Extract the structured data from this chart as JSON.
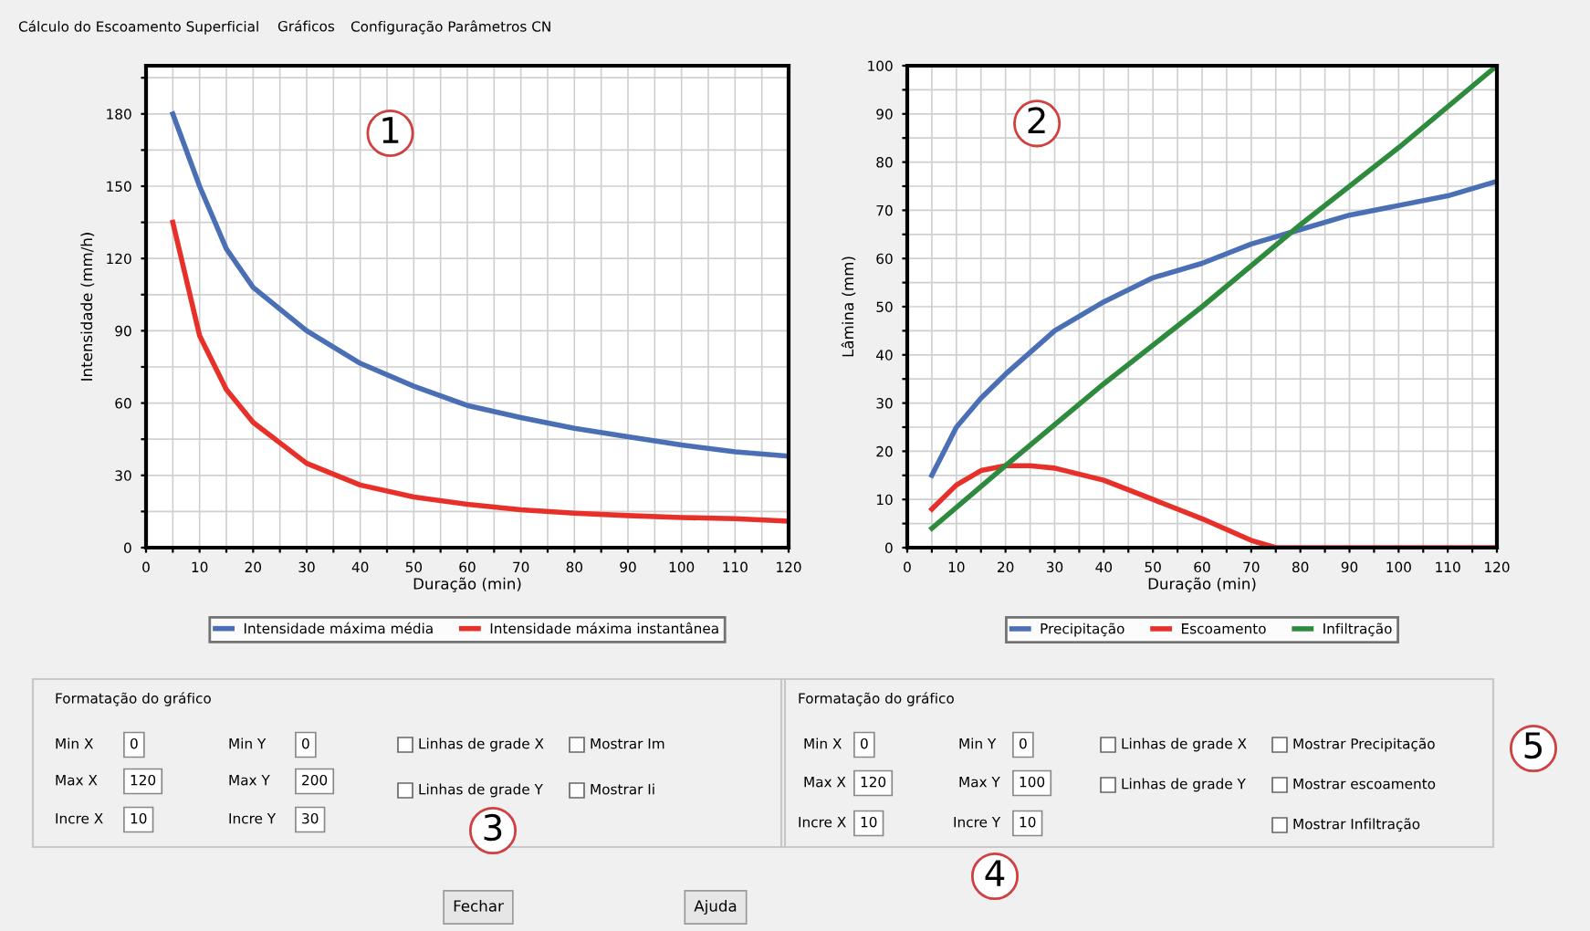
{
  "chart_data": [
    {
      "type": "line",
      "ylabel": "Intensidade (mm/h)",
      "xlabel": "Duração (min)",
      "xlim": [
        0,
        120
      ],
      "ylim": [
        0,
        200
      ],
      "xticks": [
        0,
        {
          "value": 5,
          "label": null
        },
        10,
        {
          "value": 15,
          "label": null
        },
        20,
        {
          "value": 25,
          "label": null
        },
        30,
        {
          "value": 35,
          "label": null
        },
        40,
        {
          "value": 45,
          "label": null
        },
        50,
        {
          "value": 55,
          "label": null
        },
        60,
        {
          "value": 65,
          "label": null
        },
        70,
        {
          "value": 75,
          "label": null
        },
        80,
        {
          "value": 85,
          "label": null
        },
        90,
        {
          "value": 95,
          "label": null
        },
        100,
        {
          "value": 105,
          "label": null
        },
        110,
        {
          "value": 115,
          "label": null
        },
        120
      ],
      "yticks": [
        0,
        {
          "value": 15,
          "label": null
        },
        30,
        {
          "value": 45,
          "label": null
        },
        60,
        {
          "value": 75,
          "label": null
        },
        90,
        {
          "value": 105,
          "label": null
        },
        120,
        {
          "value": 135,
          "label": null
        },
        150,
        {
          "value": 165,
          "label": null
        },
        180,
        {
          "value": 195,
          "label": null
        }
      ],
      "grid": true,
      "legend": "bottom",
      "marker": "none",
      "line_style": "solid",
      "annotations": [
        "1"
      ],
      "series": [
        {
          "name": "Intensidade máxima média",
          "color": "#4a6fb5",
          "x": [
            5,
            10,
            15,
            20,
            30,
            40,
            50,
            60,
            70,
            80,
            90,
            100,
            110,
            120
          ],
          "values": [
            180,
            150,
            124,
            108,
            90,
            76.5,
            67,
            59,
            54,
            49.5,
            46,
            42.6,
            39.8,
            38
          ]
        },
        {
          "name": "Intensidade máxima instantânea",
          "color": "#e8302a",
          "x": [
            5,
            10,
            15,
            20,
            30,
            40,
            50,
            60,
            70,
            80,
            90,
            100,
            110,
            120
          ],
          "values": [
            135,
            88,
            65.6,
            52,
            35,
            26,
            21,
            18,
            15.7,
            14.3,
            13.3,
            12.5,
            12,
            11
          ]
        }
      ]
    },
    {
      "type": "line",
      "ylabel": "Lâmina (mm)",
      "xlabel": "Duração (min)",
      "xlim": [
        0,
        120
      ],
      "ylim": [
        0,
        100
      ],
      "xticks": [
        0,
        {
          "value": 5,
          "label": null
        },
        10,
        {
          "value": 15,
          "label": null
        },
        20,
        {
          "value": 25,
          "label": null
        },
        30,
        {
          "value": 35,
          "label": null
        },
        40,
        {
          "value": 45,
          "label": null
        },
        50,
        {
          "value": 55,
          "label": null
        },
        60,
        {
          "value": 65,
          "label": null
        },
        70,
        {
          "value": 75,
          "label": null
        },
        80,
        {
          "value": 85,
          "label": null
        },
        90,
        {
          "value": 95,
          "label": null
        },
        100,
        {
          "value": 105,
          "label": null
        },
        110,
        {
          "value": 115,
          "label": null
        },
        120
      ],
      "yticks": [
        0,
        {
          "value": 5,
          "label": null
        },
        10,
        {
          "value": 15,
          "label": null
        },
        20,
        {
          "value": 25,
          "label": null
        },
        30,
        {
          "value": 35,
          "label": null
        },
        40,
        {
          "value": 45,
          "label": null
        },
        50,
        {
          "value": 55,
          "label": null
        },
        60,
        {
          "value": 65,
          "label": null
        },
        70,
        {
          "value": 75,
          "label": null
        },
        80,
        {
          "value": 85,
          "label": null
        },
        90,
        {
          "value": 95,
          "label": null
        },
        100
      ],
      "grid": true,
      "legend": "bottom",
      "marker": "none",
      "line_style": "solid",
      "annotations": [
        "2"
      ],
      "series": [
        {
          "name": "Precipitação",
          "color": "#4a6fb5",
          "x": [
            5,
            10,
            15,
            20,
            30,
            40,
            50,
            60,
            70,
            80,
            90,
            100,
            110,
            120
          ],
          "values": [
            15,
            25,
            31,
            36,
            45,
            51,
            56,
            59,
            63,
            66,
            69,
            71,
            73,
            76
          ]
        },
        {
          "name": "Escoamento",
          "color": "#e8302a",
          "x": [
            5,
            10,
            15,
            20,
            25,
            30,
            40,
            50,
            60,
            70,
            75,
            120
          ],
          "values": [
            8,
            13,
            16,
            17,
            17,
            16.5,
            14,
            10,
            6,
            1.5,
            0,
            0
          ]
        },
        {
          "name": "Infiltração",
          "color": "#2e8b3e",
          "x": [
            5,
            20,
            40,
            60,
            80,
            100,
            120
          ],
          "values": [
            4,
            17,
            34,
            50,
            67,
            83,
            100
          ]
        }
      ]
    },
    {
      "type": "other",
      "annotations": [
        "Cálculo do Escoamento Superficial",
        "Gráficos",
        "Configuração Parâmetros CN",
        "Formatação do gráfico",
        "Min X",
        "0",
        "Max X",
        "120",
        "Incre X",
        "10",
        "Min Y",
        "0",
        "Max Y",
        "200",
        "Incre Y",
        "30",
        "Linhas de grade X",
        "Linhas de grade Y",
        "Mostrar Im",
        "Mostrar Ii",
        "3",
        "Formatação do gráfico",
        "Min X",
        "0",
        "Max X",
        "120",
        "Incre X",
        "10",
        "Min Y",
        "0",
        "Max Y",
        "100",
        "Incre Y",
        "10",
        "Linhas de grade X",
        "Linhas de grade Y",
        "Mostrar Precipitação",
        "Mostrar escoamento",
        "Mostrar Infiltração",
        "4",
        "5",
        "Fechar",
        "Ajuda"
      ]
    }
  ]
}
